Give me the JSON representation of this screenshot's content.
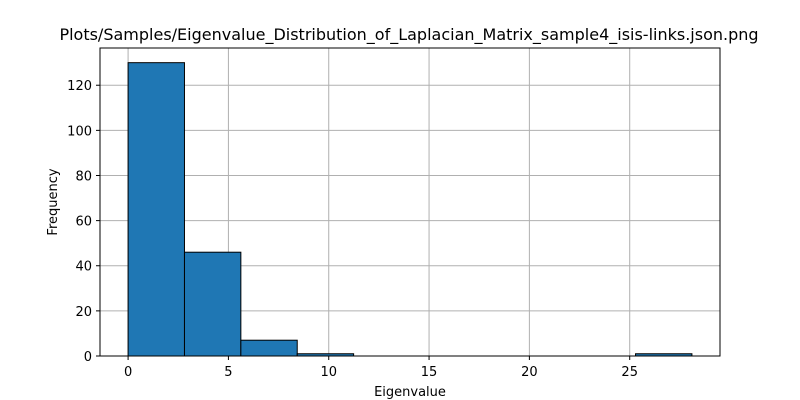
{
  "chart_data": {
    "type": "bar",
    "title": "Plots/Samples/Eigenvalue_Distribution_of_Laplacian_Matrix_sample4_isis-links.json.png",
    "xlabel": "Eigenvalue",
    "ylabel": "Frequency",
    "bin_edges": [
      0,
      2.81,
      5.62,
      8.43,
      11.24,
      14.05,
      16.86,
      19.67,
      22.48,
      25.29,
      28.1
    ],
    "values": [
      130,
      46,
      7,
      1,
      0,
      0,
      0,
      0,
      0,
      1
    ],
    "xlim": [
      -1.4,
      29.5
    ],
    "ylim": [
      0,
      136.5
    ],
    "xticks": [
      0,
      5,
      10,
      15,
      20,
      25
    ],
    "yticks": [
      0,
      20,
      40,
      60,
      80,
      100,
      120
    ],
    "grid": true,
    "bar_color": "#1f77b4",
    "edge_color": "#000000"
  }
}
